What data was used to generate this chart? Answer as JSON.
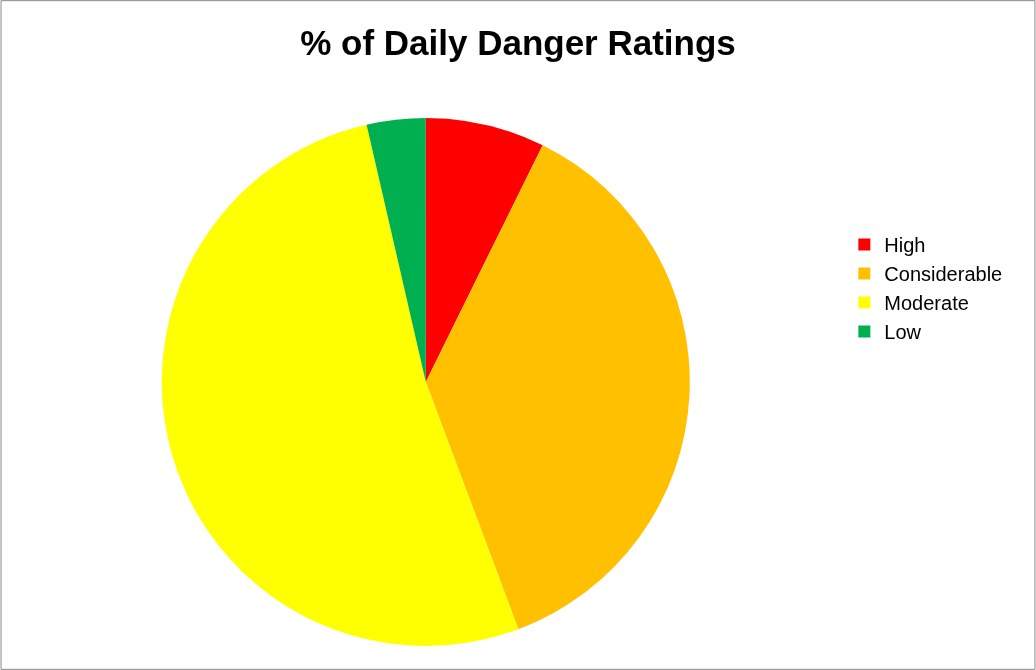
{
  "chart_data": {
    "type": "pie",
    "title": "% of Daily Danger Ratings",
    "categories": [
      "High",
      "Considerable",
      "Moderate",
      "Low"
    ],
    "values": [
      7.3,
      37.0,
      52.1,
      3.6
    ],
    "colors": [
      "#ff0000",
      "#ffc000",
      "#ffff00",
      "#00b050"
    ],
    "legend": "right"
  }
}
